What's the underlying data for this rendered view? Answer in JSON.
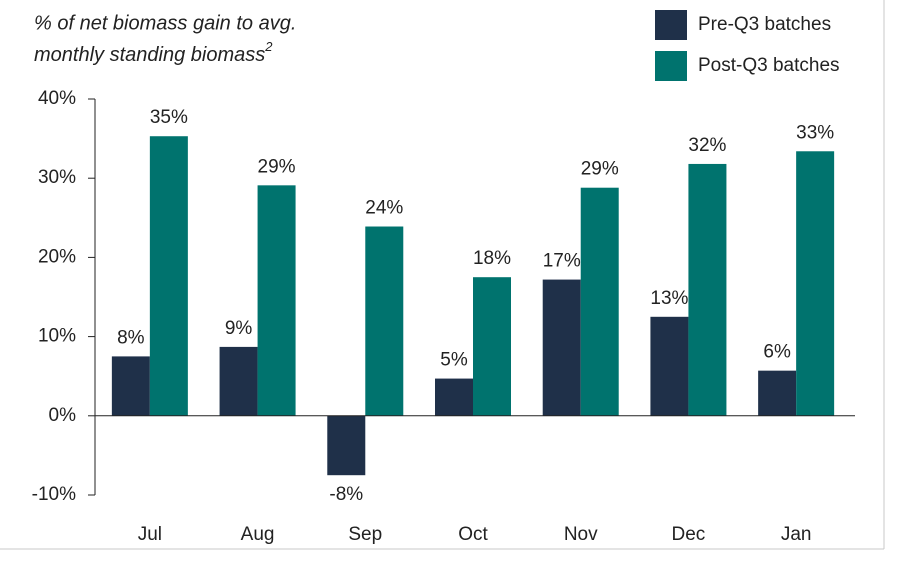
{
  "chart_data": {
    "type": "bar",
    "title": [
      "% of net biomass gain to avg.",
      "monthly standing biomass"
    ],
    "title_footnote": "2",
    "categories": [
      "Jul",
      "Aug",
      "Sep",
      "Oct",
      "Nov",
      "Dec",
      "Jan"
    ],
    "series": [
      {
        "name": "Pre-Q3 batches",
        "color": "#1f3049",
        "values": [
          7.5,
          8.7,
          -7.5,
          4.7,
          17.2,
          12.5,
          5.7
        ],
        "value_labels": [
          "8%",
          "9%",
          "-8%",
          "5%",
          "17%",
          "13%",
          "6%"
        ]
      },
      {
        "name": "Post-Q3 batches",
        "color": "#00736e",
        "values": [
          35.3,
          29.1,
          23.9,
          17.5,
          28.8,
          31.8,
          33.4
        ],
        "value_labels": [
          "35%",
          "29%",
          "24%",
          "18%",
          "29%",
          "32%",
          "33%"
        ]
      }
    ],
    "ylim": [
      -10,
      40
    ],
    "yticks": [
      {
        "value": -10,
        "label": "-10%"
      },
      {
        "value": 0,
        "label": "0%"
      },
      {
        "value": 10,
        "label": "10%"
      },
      {
        "value": 20,
        "label": "20%"
      },
      {
        "value": 30,
        "label": "30%"
      },
      {
        "value": 40,
        "label": "40%"
      }
    ],
    "grid": false
  }
}
